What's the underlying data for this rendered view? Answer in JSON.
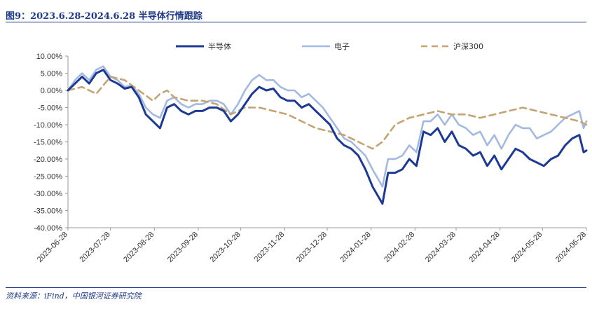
{
  "header": {
    "title": "图9：2023.6.28-2024.6.28 半导体行情跟踪"
  },
  "footer": {
    "source": "资料来源：iFind，中国银河证券研究院"
  },
  "chart_data": {
    "type": "line",
    "title": "",
    "xlabel": "",
    "ylabel": "",
    "ylim": [
      -0.4,
      0.1
    ],
    "y_ticks": [
      0.1,
      0.05,
      0.0,
      -0.05,
      -0.1,
      -0.15,
      -0.2,
      -0.25,
      -0.3,
      -0.35,
      -0.4
    ],
    "y_tick_labels": [
      "10.00%",
      "5.00%",
      "0.00%",
      "-5.00%",
      "-10.00%",
      "-15.00%",
      "-20.00%",
      "-25.00%",
      "-30.00%",
      "-35.00%",
      "-40.00%"
    ],
    "x_tick_labels": [
      "2023-06-28",
      "2023-07-28",
      "2023-08-28",
      "2023-09-28",
      "2023-10-28",
      "2023-11-28",
      "2023-12-28",
      "2024-01-28",
      "2024-02-28",
      "2024-03-28",
      "2024-04-28",
      "2024-05-28",
      "2024-06-28"
    ],
    "grid": false,
    "legend_position": "top",
    "series": [
      {
        "name": "半导体",
        "color": "#1c3a94",
        "style": "solid",
        "points": [
          [
            "2023-06-28",
            0.0
          ],
          [
            "2023-07-03",
            0.02
          ],
          [
            "2023-07-08",
            0.04
          ],
          [
            "2023-07-13",
            0.02
          ],
          [
            "2023-07-18",
            0.05
          ],
          [
            "2023-07-23",
            0.06
          ],
          [
            "2023-07-28",
            0.03
          ],
          [
            "2023-08-02",
            0.02
          ],
          [
            "2023-08-07",
            0.005
          ],
          [
            "2023-08-12",
            0.01
          ],
          [
            "2023-08-17",
            -0.02
          ],
          [
            "2023-08-22",
            -0.07
          ],
          [
            "2023-08-27",
            -0.09
          ],
          [
            "2023-09-01",
            -0.11
          ],
          [
            "2023-09-06",
            -0.05
          ],
          [
            "2023-09-11",
            -0.04
          ],
          [
            "2023-09-16",
            -0.06
          ],
          [
            "2023-09-21",
            -0.07
          ],
          [
            "2023-09-26",
            -0.06
          ],
          [
            "2023-10-01",
            -0.06
          ],
          [
            "2023-10-06",
            -0.05
          ],
          [
            "2023-10-11",
            -0.05
          ],
          [
            "2023-10-16",
            -0.06
          ],
          [
            "2023-10-21",
            -0.09
          ],
          [
            "2023-10-26",
            -0.07
          ],
          [
            "2023-10-31",
            -0.04
          ],
          [
            "2023-11-05",
            -0.01
          ],
          [
            "2023-11-10",
            0.01
          ],
          [
            "2023-11-15",
            0.0
          ],
          [
            "2023-11-20",
            0.005
          ],
          [
            "2023-11-25",
            -0.02
          ],
          [
            "2023-11-30",
            -0.03
          ],
          [
            "2023-12-05",
            -0.03
          ],
          [
            "2023-12-10",
            -0.05
          ],
          [
            "2023-12-15",
            -0.04
          ],
          [
            "2023-12-20",
            -0.06
          ],
          [
            "2023-12-25",
            -0.08
          ],
          [
            "2023-12-30",
            -0.1
          ],
          [
            "2024-01-04",
            -0.14
          ],
          [
            "2024-01-09",
            -0.16
          ],
          [
            "2024-01-14",
            -0.17
          ],
          [
            "2024-01-19",
            -0.19
          ],
          [
            "2024-01-24",
            -0.23
          ],
          [
            "2024-01-29",
            -0.28
          ],
          [
            "2024-02-05",
            -0.33
          ],
          [
            "2024-02-09",
            -0.24
          ],
          [
            "2024-02-14",
            -0.24
          ],
          [
            "2024-02-19",
            -0.23
          ],
          [
            "2024-02-24",
            -0.2
          ],
          [
            "2024-02-29",
            -0.22
          ],
          [
            "2024-03-05",
            -0.12
          ],
          [
            "2024-03-10",
            -0.13
          ],
          [
            "2024-03-15",
            -0.11
          ],
          [
            "2024-03-20",
            -0.15
          ],
          [
            "2024-03-25",
            -0.12
          ],
          [
            "2024-03-30",
            -0.16
          ],
          [
            "2024-04-04",
            -0.17
          ],
          [
            "2024-04-09",
            -0.19
          ],
          [
            "2024-04-14",
            -0.18
          ],
          [
            "2024-04-19",
            -0.22
          ],
          [
            "2024-04-24",
            -0.19
          ],
          [
            "2024-04-29",
            -0.23
          ],
          [
            "2024-05-04",
            -0.2
          ],
          [
            "2024-05-09",
            -0.17
          ],
          [
            "2024-05-14",
            -0.18
          ],
          [
            "2024-05-19",
            -0.2
          ],
          [
            "2024-05-24",
            -0.21
          ],
          [
            "2024-05-29",
            -0.22
          ],
          [
            "2024-06-03",
            -0.2
          ],
          [
            "2024-06-08",
            -0.19
          ],
          [
            "2024-06-13",
            -0.16
          ],
          [
            "2024-06-18",
            -0.14
          ],
          [
            "2024-06-23",
            -0.13
          ],
          [
            "2024-06-26",
            -0.18
          ],
          [
            "2024-06-28",
            -0.175
          ]
        ]
      },
      {
        "name": "电子",
        "color": "#a3b9e0",
        "style": "solid",
        "points": [
          [
            "2023-06-28",
            0.0
          ],
          [
            "2023-07-03",
            0.03
          ],
          [
            "2023-07-08",
            0.05
          ],
          [
            "2023-07-13",
            0.03
          ],
          [
            "2023-07-18",
            0.06
          ],
          [
            "2023-07-23",
            0.07
          ],
          [
            "2023-07-28",
            0.04
          ],
          [
            "2023-08-02",
            0.03
          ],
          [
            "2023-08-07",
            0.01
          ],
          [
            "2023-08-12",
            0.015
          ],
          [
            "2023-08-17",
            -0.01
          ],
          [
            "2023-08-22",
            -0.05
          ],
          [
            "2023-08-27",
            -0.07
          ],
          [
            "2023-09-01",
            -0.08
          ],
          [
            "2023-09-06",
            -0.03
          ],
          [
            "2023-09-11",
            -0.02
          ],
          [
            "2023-09-16",
            -0.04
          ],
          [
            "2023-09-21",
            -0.05
          ],
          [
            "2023-09-26",
            -0.04
          ],
          [
            "2023-10-01",
            -0.04
          ],
          [
            "2023-10-06",
            -0.03
          ],
          [
            "2023-10-11",
            -0.03
          ],
          [
            "2023-10-16",
            -0.04
          ],
          [
            "2023-10-21",
            -0.07
          ],
          [
            "2023-10-26",
            -0.04
          ],
          [
            "2023-10-31",
            0.0
          ],
          [
            "2023-11-05",
            0.03
          ],
          [
            "2023-11-10",
            0.045
          ],
          [
            "2023-11-15",
            0.03
          ],
          [
            "2023-11-20",
            0.03
          ],
          [
            "2023-11-25",
            0.01
          ],
          [
            "2023-11-30",
            0.0
          ],
          [
            "2023-12-05",
            0.0
          ],
          [
            "2023-12-10",
            -0.02
          ],
          [
            "2023-12-15",
            -0.01
          ],
          [
            "2023-12-20",
            -0.03
          ],
          [
            "2023-12-25",
            -0.05
          ],
          [
            "2023-12-30",
            -0.08
          ],
          [
            "2024-01-04",
            -0.11
          ],
          [
            "2024-01-09",
            -0.14
          ],
          [
            "2024-01-14",
            -0.15
          ],
          [
            "2024-01-19",
            -0.17
          ],
          [
            "2024-01-24",
            -0.19
          ],
          [
            "2024-01-29",
            -0.23
          ],
          [
            "2024-02-05",
            -0.28
          ],
          [
            "2024-02-09",
            -0.2
          ],
          [
            "2024-02-14",
            -0.2
          ],
          [
            "2024-02-19",
            -0.19
          ],
          [
            "2024-02-24",
            -0.16
          ],
          [
            "2024-02-29",
            -0.18
          ],
          [
            "2024-03-05",
            -0.09
          ],
          [
            "2024-03-10",
            -0.09
          ],
          [
            "2024-03-15",
            -0.07
          ],
          [
            "2024-03-20",
            -0.1
          ],
          [
            "2024-03-25",
            -0.07
          ],
          [
            "2024-03-30",
            -0.1
          ],
          [
            "2024-04-04",
            -0.11
          ],
          [
            "2024-04-09",
            -0.13
          ],
          [
            "2024-04-14",
            -0.12
          ],
          [
            "2024-04-19",
            -0.16
          ],
          [
            "2024-04-24",
            -0.13
          ],
          [
            "2024-04-29",
            -0.17
          ],
          [
            "2024-05-04",
            -0.13
          ],
          [
            "2024-05-09",
            -0.1
          ],
          [
            "2024-05-14",
            -0.11
          ],
          [
            "2024-05-19",
            -0.11
          ],
          [
            "2024-05-24",
            -0.14
          ],
          [
            "2024-05-29",
            -0.13
          ],
          [
            "2024-06-03",
            -0.12
          ],
          [
            "2024-06-08",
            -0.1
          ],
          [
            "2024-06-13",
            -0.08
          ],
          [
            "2024-06-18",
            -0.07
          ],
          [
            "2024-06-23",
            -0.06
          ],
          [
            "2024-06-26",
            -0.11
          ],
          [
            "2024-06-28",
            -0.09
          ]
        ]
      },
      {
        "name": "沪深300",
        "color": "#c4a473",
        "style": "dashed",
        "points": [
          [
            "2023-06-28",
            0.0
          ],
          [
            "2023-07-08",
            0.01
          ],
          [
            "2023-07-18",
            -0.01
          ],
          [
            "2023-07-28",
            0.04
          ],
          [
            "2023-08-07",
            0.03
          ],
          [
            "2023-08-17",
            0.0
          ],
          [
            "2023-08-27",
            -0.03
          ],
          [
            "2023-09-01",
            -0.01
          ],
          [
            "2023-09-06",
            0.0
          ],
          [
            "2023-09-11",
            -0.02
          ],
          [
            "2023-09-21",
            -0.03
          ],
          [
            "2023-10-01",
            -0.03
          ],
          [
            "2023-10-11",
            -0.04
          ],
          [
            "2023-10-21",
            -0.07
          ],
          [
            "2023-10-31",
            -0.05
          ],
          [
            "2023-11-10",
            -0.05
          ],
          [
            "2023-11-20",
            -0.06
          ],
          [
            "2023-11-30",
            -0.07
          ],
          [
            "2023-12-10",
            -0.09
          ],
          [
            "2023-12-20",
            -0.11
          ],
          [
            "2023-12-30",
            -0.12
          ],
          [
            "2024-01-09",
            -0.13
          ],
          [
            "2024-01-19",
            -0.15
          ],
          [
            "2024-01-29",
            -0.17
          ],
          [
            "2024-02-05",
            -0.15
          ],
          [
            "2024-02-14",
            -0.1
          ],
          [
            "2024-02-24",
            -0.08
          ],
          [
            "2024-03-05",
            -0.07
          ],
          [
            "2024-03-15",
            -0.06
          ],
          [
            "2024-03-25",
            -0.07
          ],
          [
            "2024-04-04",
            -0.07
          ],
          [
            "2024-04-14",
            -0.08
          ],
          [
            "2024-04-24",
            -0.07
          ],
          [
            "2024-05-04",
            -0.06
          ],
          [
            "2024-05-14",
            -0.05
          ],
          [
            "2024-05-24",
            -0.06
          ],
          [
            "2024-06-03",
            -0.07
          ],
          [
            "2024-06-13",
            -0.08
          ],
          [
            "2024-06-23",
            -0.09
          ],
          [
            "2024-06-28",
            -0.1
          ]
        ]
      }
    ]
  }
}
